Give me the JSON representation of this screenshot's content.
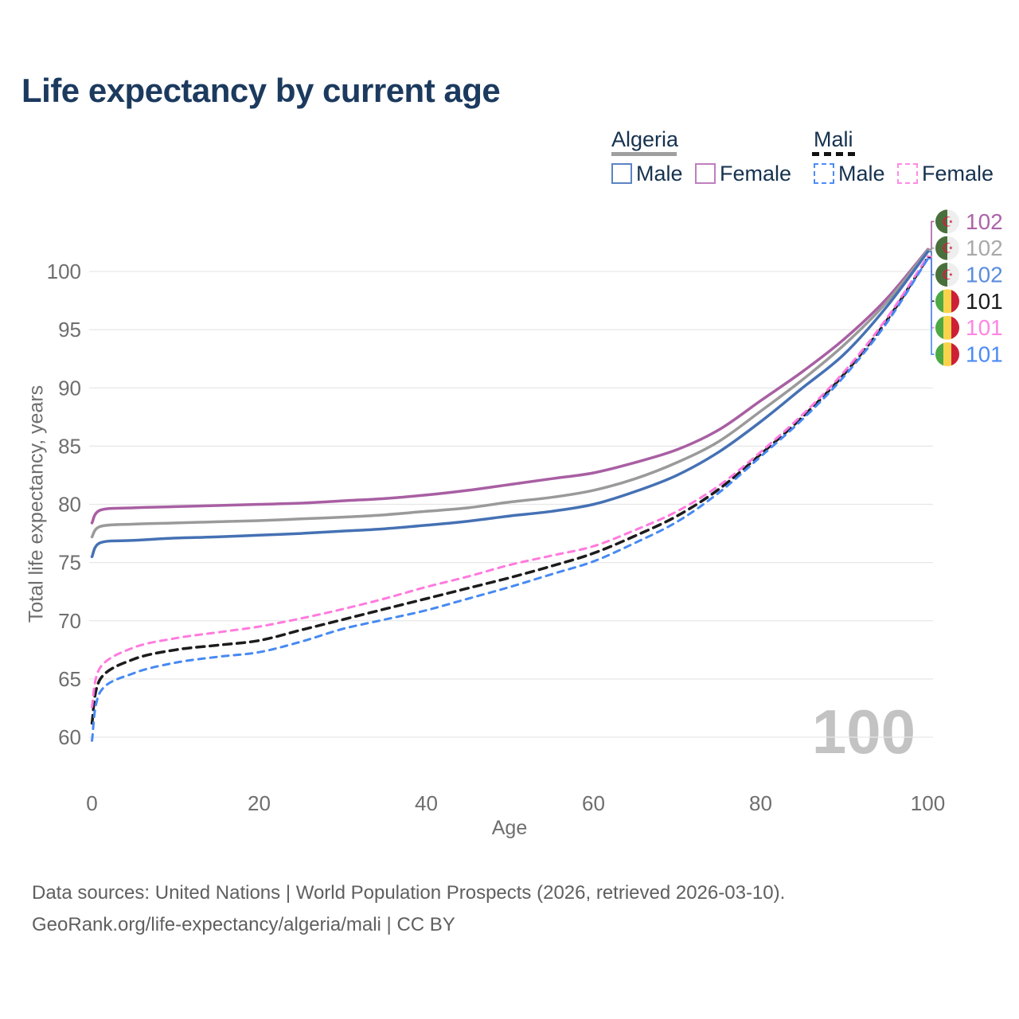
{
  "title": "Life expectancy by current age",
  "legend": {
    "groups": [
      {
        "name": "Algeria",
        "line_style": "solid",
        "line_color": "#9f9f9f",
        "items": [
          {
            "label": "Male",
            "color": "#5b84c4"
          },
          {
            "label": "Female",
            "color": "#bd7fbe"
          }
        ]
      },
      {
        "name": "Mali",
        "line_style": "dashed",
        "line_color": "#111111",
        "items": [
          {
            "label": "Male",
            "color": "#4d8cf5"
          },
          {
            "label": "Female",
            "color": "#ff8ce3"
          }
        ]
      }
    ]
  },
  "watermark": "100",
  "footer": {
    "line1": "Data sources: United Nations | World Population Prospects (2026, retrieved 2026-03-10).",
    "line2": "GeoRank.org/life-expectancy/algeria/mali | CC BY"
  },
  "chart_data": {
    "type": "line",
    "xlabel": "Age",
    "ylabel": "Total life expectancy, years",
    "xlim": [
      0,
      100
    ],
    "ylim": [
      58,
      103.5
    ],
    "xticks": [
      0,
      20,
      40,
      60,
      80,
      100
    ],
    "yticks": [
      60,
      65,
      70,
      75,
      80,
      85,
      90,
      95,
      100
    ],
    "grid": "horizontal",
    "grid_color": "#e7e7e7",
    "tick_color": "#6e6e6e",
    "x": [
      0,
      1,
      5,
      10,
      15,
      20,
      25,
      30,
      35,
      40,
      45,
      50,
      55,
      60,
      65,
      70,
      75,
      80,
      85,
      90,
      95,
      100
    ],
    "series": [
      {
        "id": "algeria-female",
        "name": "Algeria Female",
        "country": "Algeria",
        "sex": "Female",
        "color": "#a85fa3",
        "dash": null,
        "width": 3.5,
        "end_label": "102",
        "label_color": "#ac64a8",
        "flag": "algeria",
        "y": [
          78.4,
          79.5,
          79.7,
          79.8,
          79.9,
          80.0,
          80.1,
          80.3,
          80.5,
          80.8,
          81.2,
          81.7,
          82.2,
          82.7,
          83.6,
          84.7,
          86.4,
          88.9,
          91.4,
          94.2,
          97.6,
          101.9
        ]
      },
      {
        "id": "algeria-all",
        "name": "Algeria (both sexes)",
        "country": "Algeria",
        "sex": "All",
        "color": "#9a9a9a",
        "dash": null,
        "width": 3.5,
        "end_label": "102",
        "label_color": "#a9a9a9",
        "flag": "algeria",
        "y": [
          77.2,
          78.1,
          78.3,
          78.4,
          78.5,
          78.6,
          78.75,
          78.9,
          79.1,
          79.4,
          79.7,
          80.2,
          80.6,
          81.2,
          82.2,
          83.6,
          85.4,
          88.0,
          90.7,
          93.7,
          97.3,
          101.85
        ]
      },
      {
        "id": "algeria-male",
        "name": "Algeria Male",
        "country": "Algeria",
        "sex": "Male",
        "color": "#4571b4",
        "dash": null,
        "width": 3.5,
        "end_label": "102",
        "label_color": "#5b8ddb",
        "flag": "algeria",
        "y": [
          75.5,
          76.7,
          76.9,
          77.1,
          77.2,
          77.35,
          77.5,
          77.7,
          77.9,
          78.2,
          78.55,
          79.0,
          79.4,
          80.0,
          81.1,
          82.5,
          84.5,
          87.1,
          90.0,
          92.9,
          96.9,
          101.7
        ]
      },
      {
        "id": "mali-all",
        "name": "Mali (both sexes)",
        "country": "Mali",
        "sex": "All",
        "color": "#1c1c1c",
        "dash": "10 7",
        "width": 3.5,
        "end_label": "101",
        "label_color": "#1a1a1a",
        "flag": "mali",
        "y": [
          61.2,
          65.0,
          66.7,
          67.5,
          67.9,
          68.3,
          69.2,
          70.1,
          71.0,
          71.9,
          72.8,
          73.7,
          74.7,
          75.8,
          77.3,
          79.0,
          81.3,
          84.3,
          87.5,
          91.2,
          95.7,
          101.2
        ]
      },
      {
        "id": "mali-female",
        "name": "Mali Female",
        "country": "Mali",
        "sex": "Female",
        "color": "#ff7ade",
        "dash": "8 7",
        "width": 3,
        "end_label": "101",
        "label_color": "#ff85e2",
        "flag": "mali",
        "y": [
          62.6,
          66.0,
          67.7,
          68.5,
          69.0,
          69.5,
          70.2,
          71.0,
          71.9,
          72.9,
          73.8,
          74.8,
          75.6,
          76.4,
          77.8,
          79.4,
          81.6,
          84.5,
          87.7,
          91.4,
          95.9,
          101.3
        ]
      },
      {
        "id": "mali-male",
        "name": "Mali Male",
        "country": "Mali",
        "sex": "Male",
        "color": "#4689f2",
        "dash": "8 7",
        "width": 3,
        "end_label": "101",
        "label_color": "#4b8bf4",
        "flag": "mali",
        "y": [
          59.7,
          63.9,
          65.5,
          66.4,
          66.9,
          67.3,
          68.2,
          69.3,
          70.1,
          70.9,
          71.9,
          72.9,
          74.0,
          75.1,
          76.7,
          78.5,
          81.0,
          84.1,
          87.3,
          91.0,
          95.5,
          101.1
        ]
      }
    ],
    "right_annotations": {
      "flag_order_top_to_bottom": [
        "algeria-female",
        "algeria-all",
        "algeria-male",
        "mali-all",
        "mali-female",
        "mali-male"
      ],
      "labels": [
        "102",
        "102",
        "102",
        "101",
        "101",
        "101"
      ]
    },
    "flag_colors": {
      "algeria": {
        "left": "#49703c",
        "right": "#eeeeee",
        "emblem": "#c8243e"
      },
      "mali": {
        "stripes": [
          "#4da944",
          "#f8d44c",
          "#cd2036"
        ]
      }
    }
  }
}
